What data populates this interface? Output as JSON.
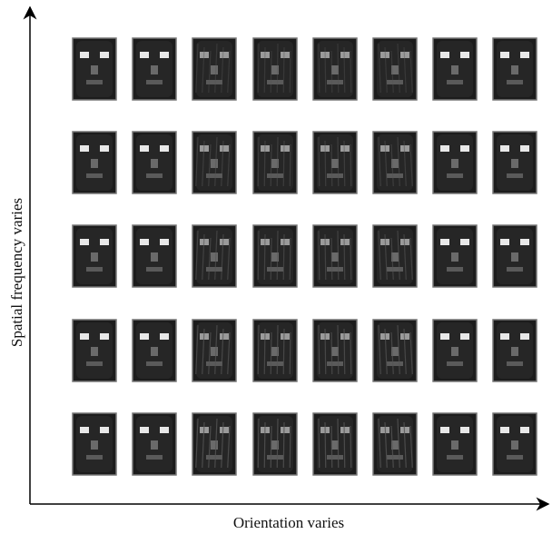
{
  "y_axis_label": "Spatial frequency varies",
  "x_axis_label": "Orientation varies"
}
